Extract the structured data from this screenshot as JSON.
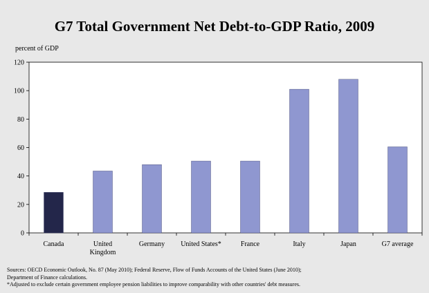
{
  "chart_data": {
    "type": "bar",
    "title": "G7 Total Government Net Debt-to-GDP Ratio, 2009",
    "ylabel": "percent of GDP",
    "xlabel": "",
    "ylim": [
      0,
      120
    ],
    "yticks": [
      0,
      20,
      40,
      60,
      80,
      100,
      120
    ],
    "grid": false,
    "categories": [
      "Canada",
      "United Kingdom",
      "Germany",
      "United States*",
      "France",
      "Italy",
      "Japan",
      "G7 average"
    ],
    "values": [
      28.5,
      43.5,
      48,
      50.5,
      50.5,
      101,
      108,
      60.5
    ],
    "colors": {
      "highlight": "#23264a",
      "default": "#8f97d0",
      "plot_background": "#ffffff"
    }
  },
  "notes": {
    "sources": "Sources: OECD Economic Outlook, No. 87 (May 2010); Federal Reserve, Flow of Funds Accounts of the United States (June 2010);",
    "sources_cont": "Department of Finance calculations.",
    "footnote": "*Adjusted to exclude certain government employee pension liabilities to improve comparability with other countries' debt measures."
  }
}
